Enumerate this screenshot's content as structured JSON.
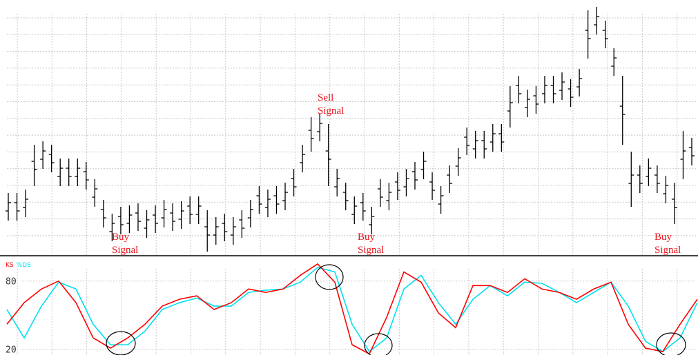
{
  "chart_data": [
    {
      "type": "ohlc",
      "color": "#000000",
      "grid": true,
      "ylim": [
        0,
        360
      ],
      "open": [
        64,
        76,
        69,
        136,
        139,
        146,
        114,
        126,
        114,
        121,
        84,
        66,
        34,
        56,
        46,
        61,
        39,
        58,
        54,
        61,
        52,
        71,
        59,
        41,
        29,
        46,
        29,
        51,
        54,
        86,
        69,
        86,
        79,
        111,
        134,
        181,
        179,
        151,
        99,
        91,
        59,
        76,
        44,
        96,
        79,
        106,
        99,
        121,
        124,
        106,
        74,
        116,
        129,
        171,
        154,
        166,
        164,
        176,
        209,
        246,
        214,
        231,
        234,
        246,
        239,
        241,
        244,
        326,
        334,
        326,
        274,
        216,
        104,
        116,
        114,
        116,
        89,
        81,
        139,
        156
      ],
      "high": [
        90,
        90,
        95,
        160,
        165,
        160,
        140,
        140,
        140,
        135,
        110,
        80,
        60,
        70,
        72,
        75,
        65,
        72,
        80,
        75,
        78,
        85,
        85,
        65,
        55,
        60,
        55,
        65,
        80,
        100,
        95,
        100,
        105,
        125,
        160,
        200,
        205,
        190,
        125,
        105,
        85,
        90,
        70,
        110,
        105,
        120,
        125,
        135,
        150,
        120,
        100,
        130,
        155,
        185,
        180,
        180,
        190,
        190,
        245,
        260,
        240,
        245,
        260,
        260,
        265,
        255,
        270,
        355,
        360,
        340,
        300,
        260,
        150,
        130,
        140,
        130,
        115,
        105,
        180,
        170
      ],
      "low": [
        50,
        50,
        55,
        100,
        125,
        120,
        100,
        100,
        100,
        95,
        70,
        40,
        20,
        30,
        32,
        35,
        25,
        32,
        40,
        35,
        38,
        45,
        45,
        5,
        15,
        20,
        15,
        25,
        40,
        60,
        55,
        60,
        65,
        85,
        120,
        150,
        165,
        100,
        85,
        65,
        45,
        50,
        30,
        70,
        65,
        80,
        85,
        95,
        110,
        80,
        60,
        90,
        115,
        145,
        140,
        140,
        150,
        150,
        185,
        220,
        200,
        205,
        220,
        220,
        225,
        215,
        230,
        285,
        320,
        300,
        260,
        160,
        70,
        90,
        100,
        90,
        75,
        45,
        110,
        130
      ],
      "close": [
        76,
        64,
        81,
        124,
        151,
        134,
        126,
        114,
        126,
        109,
        96,
        54,
        46,
        44,
        58,
        49,
        51,
        46,
        66,
        49,
        64,
        59,
        71,
        29,
        41,
        34,
        41,
        39,
        66,
        74,
        81,
        74,
        91,
        99,
        146,
        169,
        191,
        139,
        111,
        79,
        71,
        64,
        56,
        84,
        91,
        94,
        111,
        109,
        136,
        94,
        86,
        104,
        141,
        159,
        166,
        154,
        176,
        164,
        221,
        234,
        226,
        219,
        246,
        234,
        251,
        229,
        256,
        314,
        346,
        314,
        286,
        204,
        116,
        104,
        126,
        104,
        101,
        69,
        151,
        144
      ],
      "annotations": [
        [
          "Buy",
          "Signal"
        ],
        [
          "Sell",
          "Signal"
        ],
        [
          "Buy",
          "Signal"
        ],
        [
          "Buy",
          "Signal"
        ]
      ]
    },
    {
      "type": "line",
      "grid": true,
      "ylim": [
        15,
        98
      ],
      "yticks": [
        20,
        80
      ],
      "series": [
        {
          "name": "KS",
          "color": "#ff0000",
          "values": [
            42,
            61,
            73,
            80,
            61,
            30,
            21,
            30,
            42,
            58,
            64,
            67,
            55,
            61,
            73,
            70,
            73,
            85,
            95,
            79,
            24,
            16,
            48,
            88,
            79,
            52,
            39,
            76,
            76,
            70,
            82,
            73,
            70,
            64,
            73,
            79,
            42,
            21,
            18,
            42,
            64
          ]
        },
        {
          "name": "%DS",
          "color": "#00e0f0",
          "values": [
            55,
            30,
            58,
            79,
            73,
            42,
            24,
            24,
            36,
            55,
            61,
            65,
            58,
            58,
            70,
            72,
            73,
            79,
            92,
            88,
            42,
            18,
            30,
            73,
            85,
            61,
            42,
            64,
            76,
            67,
            79,
            78,
            70,
            61,
            70,
            79,
            58,
            27,
            18,
            30,
            61
          ]
        }
      ]
    }
  ]
}
